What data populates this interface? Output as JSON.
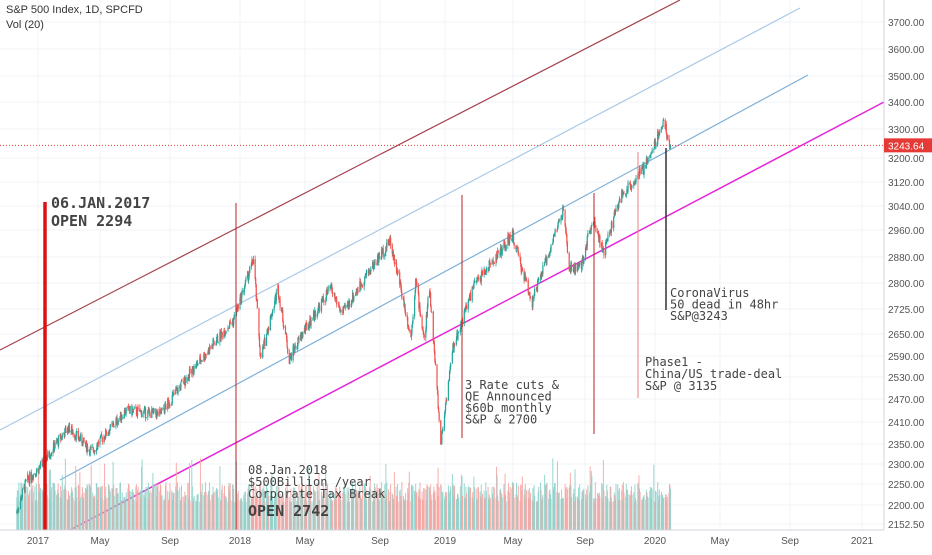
{
  "header": {
    "title": "S&P 500 Index, 1D, SPCFD",
    "subtitle": "Vol (20)"
  },
  "chart_data": {
    "type": "candlestick",
    "symbol": "SPCFD",
    "interval": "1D",
    "last_price_label": "3243.64",
    "last_price": 3243.64,
    "y_ticks": [
      "3700.00",
      "3600.00",
      "3500.00",
      "3400.00",
      "3300.00",
      "3200.00",
      "3120.00",
      "3040.00",
      "2960.00",
      "2880.00",
      "2800.00",
      "2725.00",
      "2650.00",
      "2590.00",
      "2530.00",
      "2470.00",
      "2410.00",
      "2350.00",
      "2300.00",
      "2250.00",
      "2200.00",
      "2152.50"
    ],
    "y_tick_values": [
      3700,
      3600,
      3500,
      3400,
      3300,
      3200,
      3120,
      3040,
      2960,
      2880,
      2800,
      2725,
      2650,
      2590,
      2530,
      2470,
      2410,
      2350,
      2300,
      2250,
      2200,
      2152.5
    ],
    "x_ticks": [
      "2017",
      "May",
      "Sep",
      "2018",
      "May",
      "Sep",
      "2019",
      "May",
      "Sep",
      "2020",
      "May",
      "Sep",
      "2021"
    ],
    "x_tick_dates": [
      "2017-01-01",
      "2017-05-01",
      "2017-09-01",
      "2018-01-01",
      "2018-05-01",
      "2018-09-01",
      "2019-01-01",
      "2019-05-01",
      "2019-09-01",
      "2020-01-01",
      "2020-05-01",
      "2020-09-01",
      "2021-01-01"
    ],
    "price_path": [
      [
        "2016-11-20",
        2180
      ],
      [
        "2016-12-10",
        2258
      ],
      [
        "2017-01-06",
        2294
      ],
      [
        "2017-03-01",
        2395
      ],
      [
        "2017-04-15",
        2330
      ],
      [
        "2017-06-15",
        2440
      ],
      [
        "2017-08-15",
        2430
      ],
      [
        "2017-10-15",
        2560
      ],
      [
        "2017-12-20",
        2690
      ],
      [
        "2018-01-26",
        2872
      ],
      [
        "2018-02-08",
        2581
      ],
      [
        "2018-03-12",
        2785
      ],
      [
        "2018-04-02",
        2581
      ],
      [
        "2018-06-12",
        2785
      ],
      [
        "2018-07-01",
        2710
      ],
      [
        "2018-08-15",
        2840
      ],
      [
        "2018-09-20",
        2930
      ],
      [
        "2018-10-15",
        2750
      ],
      [
        "2018-10-29",
        2640
      ],
      [
        "2018-11-07",
        2810
      ],
      [
        "2018-11-23",
        2630
      ],
      [
        "2018-12-03",
        2790
      ],
      [
        "2018-12-24",
        2350
      ],
      [
        "2019-01-15",
        2610
      ],
      [
        "2019-02-20",
        2790
      ],
      [
        "2019-04-30",
        2945
      ],
      [
        "2019-05-15",
        2850
      ],
      [
        "2019-06-03",
        2745
      ],
      [
        "2019-07-26",
        3025
      ],
      [
        "2019-08-05",
        2845
      ],
      [
        "2019-08-25",
        2847
      ],
      [
        "2019-09-15",
        3005
      ],
      [
        "2019-10-03",
        2887
      ],
      [
        "2019-11-01",
        3067
      ],
      [
        "2019-12-15",
        3170
      ],
      [
        "2020-01-17",
        3330
      ],
      [
        "2020-01-31",
        3225
      ]
    ],
    "volume_note": "Vol (20)",
    "trend_lines": [
      {
        "name": "upper-dark-red",
        "color": "#a3404d"
      },
      {
        "name": "light-blue-upper",
        "color": "#a8c9e8"
      },
      {
        "name": "blue-mid",
        "color": "#7fb0d8"
      },
      {
        "name": "magenta-lower",
        "color": "#e626d8"
      }
    ],
    "annotations": [
      {
        "lines": [
          "06.JAN.2017",
          "OPEN 2294"
        ]
      },
      {
        "lines": [
          "08.Jan.2018",
          "$500Billion /year",
          "Corporate Tax Break"
        ]
      },
      {
        "lines": [
          "OPEN 2742"
        ]
      },
      {
        "lines": [
          "3 Rate cuts &",
          "QE Announced",
          "$60b monthly",
          "S&P & 2700"
        ]
      },
      {
        "lines": [
          "Phase1 -",
          "China/US trade-deal",
          "S&P @ 3135"
        ]
      },
      {
        "lines": [
          "CoronaVirus",
          "50 dead in 48hr",
          "S&P@3243"
        ]
      }
    ],
    "colors": {
      "up": "#26a69a",
      "down": "#ef5350",
      "price_line": "#e53935"
    }
  }
}
